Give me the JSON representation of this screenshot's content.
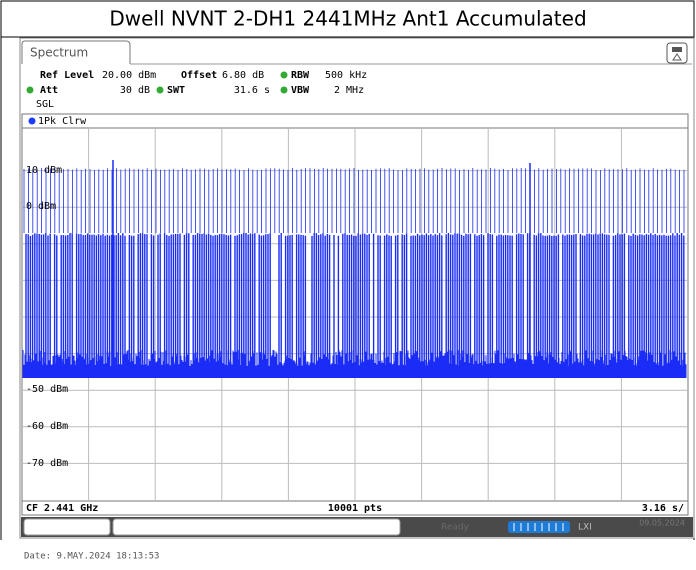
{
  "header": {
    "title": "Dwell NVNT 2-DH1 2441MHz Ant1 Accumulated"
  },
  "instrument": {
    "tab": "Spectrum",
    "settings": [
      {
        "label": "Ref Level",
        "value": "20.00 dBm"
      },
      {
        "label": "Offset",
        "value": "6.80 dB"
      },
      {
        "label": "RBW",
        "value": "500 kHz"
      },
      {
        "label": "Att",
        "value": "30 dB"
      },
      {
        "label": "SWT",
        "value": "31.6 s"
      },
      {
        "label": "VBW",
        "value": "2 MHz"
      }
    ],
    "mode": "SGL",
    "trace": "1Pk Clrw",
    "y_labels": [
      "10 dBm",
      "0 dBm",
      "-50 dBm",
      "-60 dBm",
      "-70 dBm"
    ],
    "status": {
      "center": "CF 2.441 GHz",
      "points": "10001 pts",
      "sweep": "3.16 s/"
    },
    "bottom": {
      "state": "Ready",
      "date": "09.05.2024"
    }
  },
  "footer": {
    "date": "Date: 9.MAY.2024  18:13:53"
  }
}
